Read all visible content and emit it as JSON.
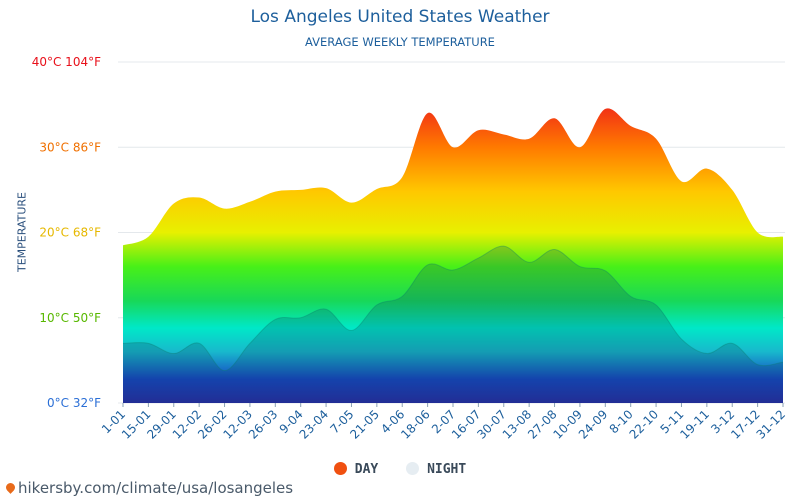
{
  "header": {
    "title": "Los Angeles United States Weather",
    "subtitle": "AVERAGE WEEKLY TEMPERATURE"
  },
  "legend": {
    "day": "DAY",
    "night": "NIGHT",
    "day_color": "#f05010",
    "night_color": "#e6edf2"
  },
  "footer": {
    "text": "hikersby.com/climate/usa/losangeles"
  },
  "chart_data": {
    "type": "area",
    "ylabel": "TEMPERATURE",
    "ylim": [
      0,
      40
    ],
    "yticks": [
      {
        "value": 0,
        "label": "0°C 32°F",
        "color": "#2b6fd6"
      },
      {
        "value": 10,
        "label": "10°C 50°F",
        "color": "#58b800"
      },
      {
        "value": 20,
        "label": "20°C 68°F",
        "color": "#e6b800"
      },
      {
        "value": 30,
        "label": "30°C 86°F",
        "color": "#f07000"
      },
      {
        "value": 40,
        "label": "40°C 104°F",
        "color": "#e8101a"
      }
    ],
    "x": [
      "1-01",
      "15-01",
      "29-01",
      "12-02",
      "26-02",
      "12-03",
      "26-03",
      "9-04",
      "23-04",
      "7-05",
      "21-05",
      "4-06",
      "18-06",
      "2-07",
      "16-07",
      "30-07",
      "13-08",
      "27-08",
      "10-09",
      "24-09",
      "8-10",
      "22-10",
      "5-11",
      "19-11",
      "3-12",
      "17-12",
      "31-12"
    ],
    "series": [
      {
        "name": "DAY",
        "values": [
          18.5,
          19.5,
          23.4,
          24.1,
          22.8,
          23.6,
          24.8,
          25.0,
          25.2,
          23.5,
          25.1,
          26.5,
          34.0,
          30.0,
          32.0,
          31.5,
          31.0,
          33.4,
          30.0,
          34.5,
          32.5,
          31.0,
          26.0,
          27.5,
          25.0,
          20.0,
          19.5
        ]
      },
      {
        "name": "NIGHT",
        "values": [
          7.0,
          7.0,
          5.8,
          7.0,
          3.8,
          7.0,
          9.8,
          10.0,
          11.0,
          8.5,
          11.5,
          12.5,
          16.2,
          15.6,
          17.0,
          18.4,
          16.5,
          18.0,
          16.0,
          15.5,
          12.5,
          11.5,
          7.5,
          5.8,
          7.0,
          4.5,
          4.8
        ]
      }
    ],
    "grid": true,
    "legend_position": "bottom"
  }
}
